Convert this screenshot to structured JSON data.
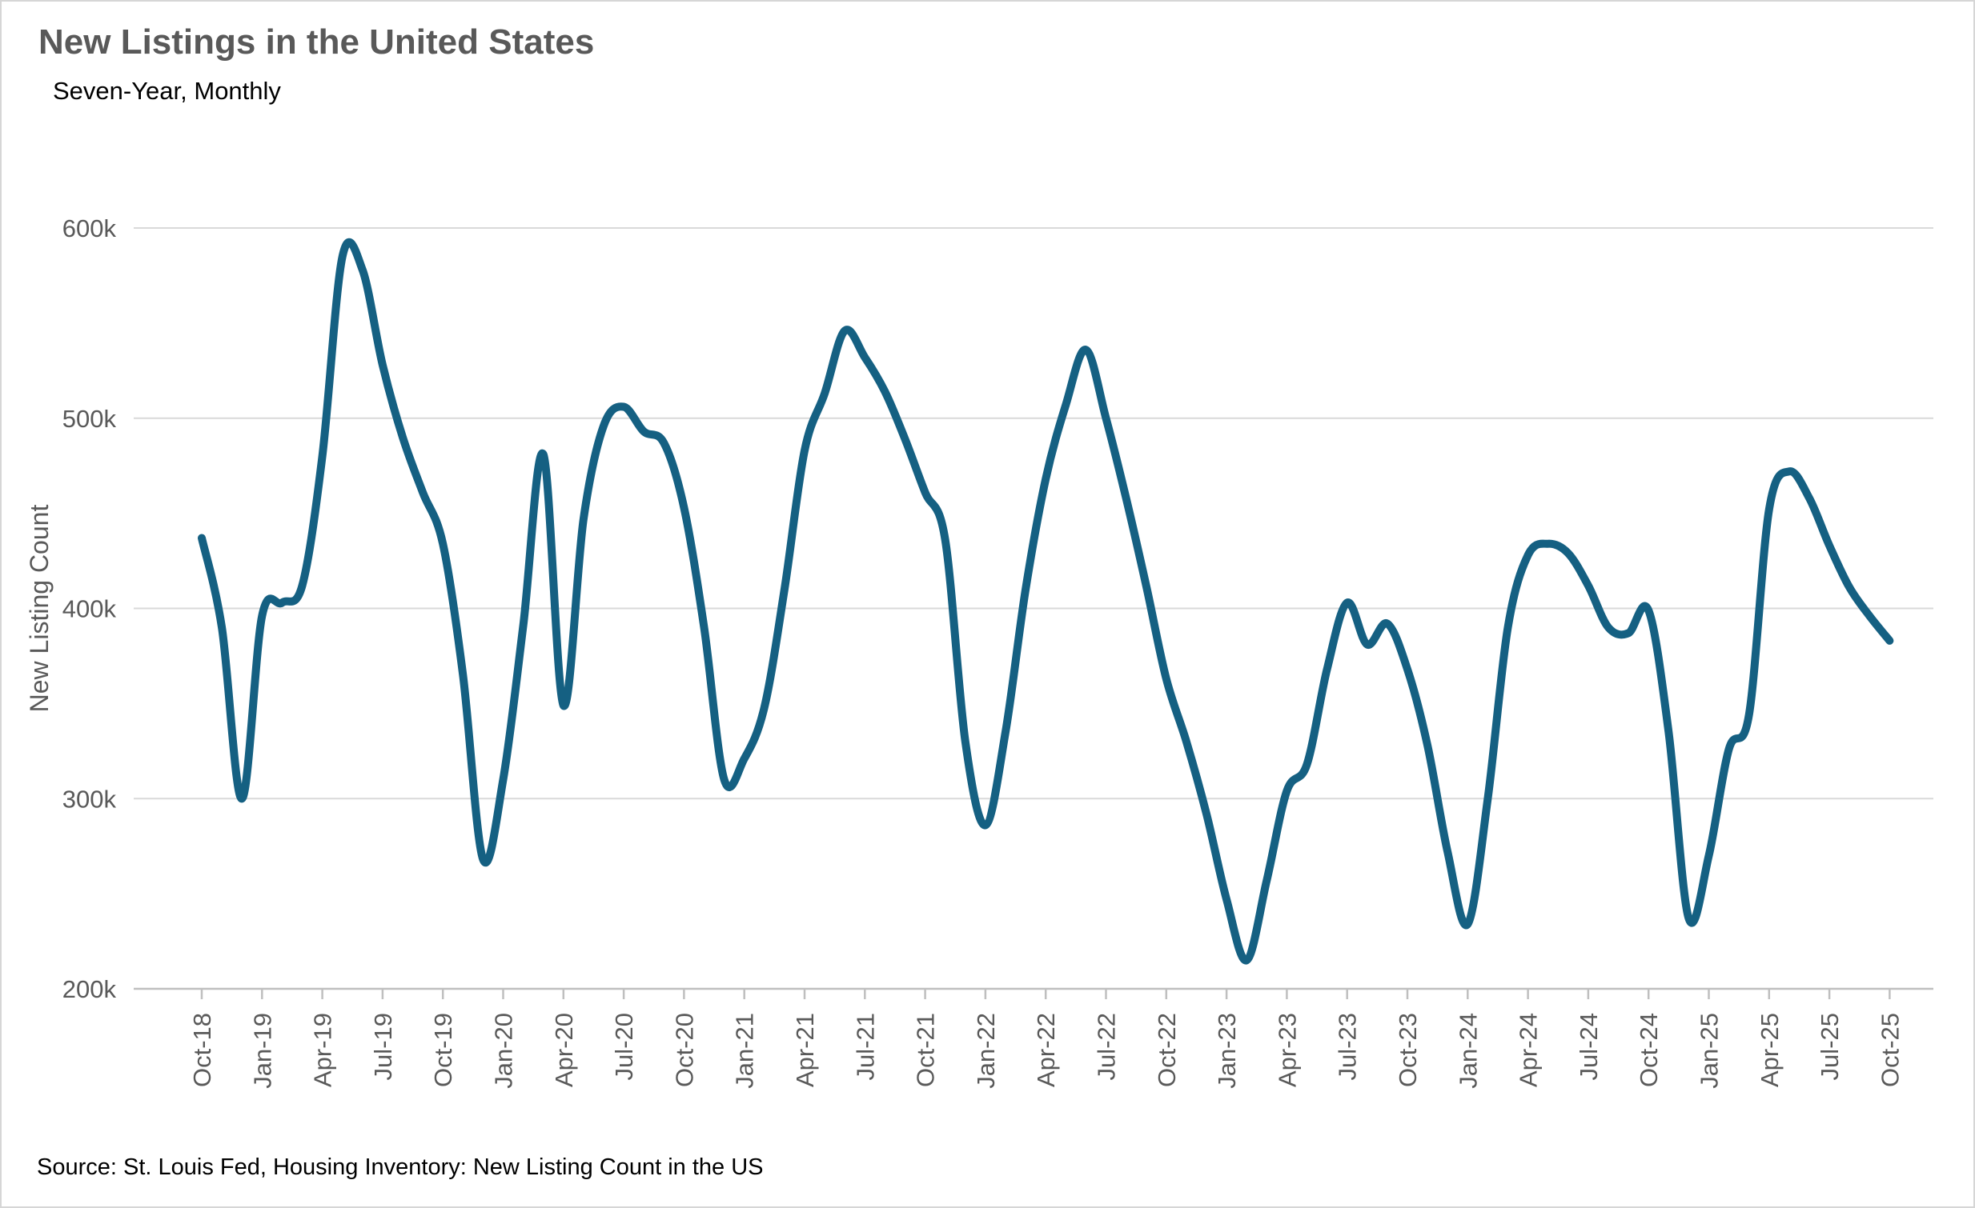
{
  "header": {
    "title": "New Listings in the United States",
    "subtitle": "Seven-Year, Monthly"
  },
  "footer": {
    "source": "Source: St. Louis Fed, Housing Inventory: New Listing Count in the US"
  },
  "colors": {
    "line": "#156082",
    "grid": "#d9d9d9",
    "axis": "#bfbfbf",
    "tick_text": "#595959",
    "title_text": "#595959"
  },
  "chart_data": {
    "type": "line",
    "title": "New Listings in the United States",
    "subtitle": "Seven-Year, Monthly",
    "xlabel": "",
    "ylabel": "New Listing Count",
    "source": "Source: St. Louis Fed, Housing Inventory: New Listing Count in the US",
    "legend": "none",
    "grid": "horizontal",
    "smooth": true,
    "line_color": "#156082",
    "ylim": [
      200,
      600
    ],
    "yticks": [
      {
        "label": "200k",
        "value": 200
      },
      {
        "label": "300k",
        "value": 300
      },
      {
        "label": "400k",
        "value": 400
      },
      {
        "label": "500k",
        "value": 500
      },
      {
        "label": "600k",
        "value": 600
      }
    ],
    "x_axis_tick_every_months": 3,
    "x": [
      "Oct-18",
      "Nov-18",
      "Dec-18",
      "Jan-19",
      "Feb-19",
      "Mar-19",
      "Apr-19",
      "May-19",
      "Jun-19",
      "Jul-19",
      "Aug-19",
      "Sep-19",
      "Oct-19",
      "Nov-19",
      "Dec-19",
      "Jan-20",
      "Feb-20",
      "Mar-20",
      "Apr-20",
      "May-20",
      "Jun-20",
      "Jul-20",
      "Aug-20",
      "Sep-20",
      "Oct-20",
      "Nov-20",
      "Dec-20",
      "Jan-21",
      "Feb-21",
      "Mar-21",
      "Apr-21",
      "May-21",
      "Jun-21",
      "Jul-21",
      "Aug-21",
      "Sep-21",
      "Oct-21",
      "Nov-21",
      "Dec-21",
      "Jan-22",
      "Feb-22",
      "Mar-22",
      "Apr-22",
      "May-22",
      "Jun-22",
      "Jul-22",
      "Aug-22",
      "Sep-22",
      "Oct-22",
      "Nov-22",
      "Dec-22",
      "Jan-23",
      "Feb-23",
      "Mar-23",
      "Apr-23",
      "May-23",
      "Jun-23",
      "Jul-23",
      "Aug-23",
      "Sep-23",
      "Oct-23",
      "Nov-23",
      "Dec-23",
      "Jan-24",
      "Feb-24",
      "Mar-24",
      "Apr-24",
      "May-24",
      "Jun-24",
      "Jul-24",
      "Aug-24",
      "Sep-24",
      "Oct-24",
      "Nov-24",
      "Dec-24",
      "Jan-25",
      "Feb-25",
      "Mar-25",
      "Apr-25",
      "May-25",
      "Jun-25",
      "Jul-25",
      "Aug-25",
      "Sep-25",
      "Oct-25"
    ],
    "values_thousands": [
      437,
      390,
      300,
      396,
      403,
      412,
      480,
      585,
      578,
      528,
      490,
      461,
      434,
      365,
      268,
      310,
      391,
      481,
      349,
      447,
      496,
      506,
      493,
      487,
      453,
      390,
      310,
      321,
      348,
      410,
      483,
      513,
      546,
      532,
      514,
      489,
      461,
      436,
      330,
      286,
      335,
      410,
      468,
      507,
      536,
      500,
      458,
      412,
      363,
      330,
      292,
      247,
      215,
      257,
      304,
      318,
      368,
      403,
      381,
      392,
      368,
      328,
      272,
      234,
      300,
      390,
      428,
      434,
      429,
      412,
      390,
      387,
      399,
      335,
      237,
      270,
      326,
      344,
      452,
      472,
      458,
      433,
      411,
      396,
      383
    ]
  }
}
